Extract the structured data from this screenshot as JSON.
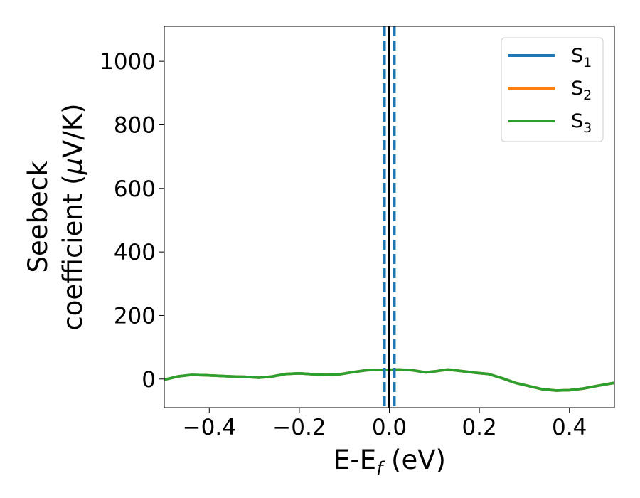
{
  "chart_data": {
    "type": "line",
    "xlabel": {
      "main": "E-E",
      "sub": "f",
      "unit": " (eV)"
    },
    "ylabel": {
      "line1": "Seebeck",
      "line2_prefix": "coefficient  (",
      "mu": "μ",
      "line2_suffix": "V/K)"
    },
    "xlim": [
      -0.5,
      0.5
    ],
    "ylim": [
      -90,
      1110
    ],
    "x_ticks": [
      -0.4,
      -0.2,
      0.0,
      0.2,
      0.4
    ],
    "x_tick_labels": [
      "−0.4",
      "−0.2",
      "0.0",
      "0.2",
      "0.4"
    ],
    "y_ticks": [
      0,
      200,
      400,
      600,
      800,
      1000
    ],
    "y_tick_labels": [
      "0",
      "200",
      "400",
      "600",
      "800",
      "1000"
    ],
    "grid": false,
    "legend_position": "top-right",
    "series": [
      {
        "name": "S",
        "sub": "1",
        "color": "#1f77b4"
      },
      {
        "name": "S",
        "sub": "2",
        "color": "#ff7f0e"
      },
      {
        "name": "S",
        "sub": "3",
        "color": "#2ca02c"
      }
    ],
    "curve": {
      "x": [
        -0.5,
        -0.47,
        -0.44,
        -0.41,
        -0.38,
        -0.35,
        -0.32,
        -0.29,
        -0.26,
        -0.23,
        -0.2,
        -0.17,
        -0.14,
        -0.11,
        -0.08,
        -0.05,
        -0.02,
        0.0,
        0.02,
        0.05,
        0.08,
        0.1,
        0.13,
        0.16,
        0.19,
        0.22,
        0.25,
        0.28,
        0.31,
        0.34,
        0.37,
        0.4,
        0.43,
        0.46,
        0.5
      ],
      "y": [
        -2,
        8,
        13,
        12,
        10,
        8,
        7,
        4,
        8,
        16,
        18,
        15,
        13,
        15,
        22,
        28,
        29,
        29,
        30,
        28,
        21,
        24,
        30,
        25,
        20,
        16,
        3,
        -12,
        -22,
        -32,
        -36,
        -35,
        -30,
        -22,
        -12
      ]
    },
    "vertical_lines": [
      {
        "x": 0.0,
        "style": "solid",
        "color": "#000000"
      },
      {
        "x": -0.011,
        "style": "dashed",
        "color": "#1f77b4"
      },
      {
        "x": 0.011,
        "style": "dashed",
        "color": "#1f77b4"
      }
    ]
  }
}
